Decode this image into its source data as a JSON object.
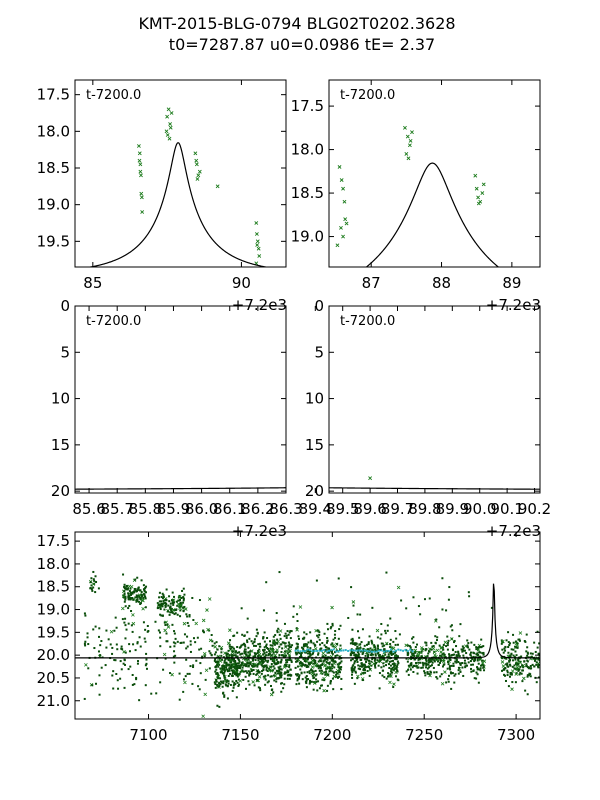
{
  "title": {
    "line1": "KMT-2015-BLG-0794 BLG02T0202.3628",
    "line2": "t0=7287.87 u0=0.0986 tE=   2.37"
  },
  "colors": {
    "model": "#000000",
    "points": "#1a7a1a",
    "points_dark": "#0a4d0a",
    "cyan": "#2ab0c8"
  },
  "chart_data": [
    {
      "id": "panel-top-left",
      "type": "line",
      "annotation": "t-7200.0",
      "offset_label": "+7.2e3",
      "xlim": [
        84.4,
        91.5
      ],
      "ylim": [
        19.85,
        17.3
      ],
      "xticks": [
        {
          "v": 85,
          "label": "85"
        },
        {
          "v": 90,
          "label": "90"
        }
      ],
      "yticks": [
        {
          "v": 17.5,
          "label": "17.5"
        },
        {
          "v": 18.0,
          "label": "18.0"
        },
        {
          "v": 18.5,
          "label": "18.5"
        },
        {
          "v": 19.0,
          "label": "19.0"
        },
        {
          "v": 19.5,
          "label": "19.5"
        }
      ],
      "model": {
        "t0": 87.87,
        "u0": 0.0986,
        "tE": 2.37,
        "base": 19.95,
        "fs": 0.46
      },
      "points": [
        [
          86.55,
          18.2
        ],
        [
          86.58,
          18.3
        ],
        [
          86.6,
          18.45
        ],
        [
          86.62,
          18.6
        ],
        [
          86.63,
          18.85
        ],
        [
          86.65,
          18.9
        ],
        [
          86.66,
          19.1
        ],
        [
          86.6,
          18.55
        ],
        [
          86.57,
          18.4
        ],
        [
          87.5,
          17.8
        ],
        [
          87.55,
          17.7
        ],
        [
          87.6,
          17.9
        ],
        [
          87.52,
          18.05
        ],
        [
          87.58,
          18.1
        ],
        [
          87.62,
          17.95
        ],
        [
          87.65,
          17.75
        ],
        [
          87.48,
          18.0
        ],
        [
          88.45,
          18.3
        ],
        [
          88.5,
          18.45
        ],
        [
          88.55,
          18.6
        ],
        [
          88.6,
          18.55
        ],
        [
          88.48,
          18.4
        ],
        [
          88.52,
          18.65
        ],
        [
          89.2,
          18.75
        ],
        [
          90.5,
          19.25
        ],
        [
          90.52,
          19.4
        ],
        [
          90.55,
          19.5
        ],
        [
          90.58,
          19.6
        ],
        [
          90.6,
          19.7
        ],
        [
          90.5,
          19.8
        ],
        [
          90.53,
          19.55
        ]
      ]
    },
    {
      "id": "panel-top-right",
      "type": "line",
      "annotation": "t-7200.0",
      "offset_label": "+7.2e3",
      "xlim": [
        86.4,
        89.4
      ],
      "ylim": [
        19.35,
        17.2
      ],
      "xticks": [
        {
          "v": 87,
          "label": "87"
        },
        {
          "v": 88,
          "label": "88"
        },
        {
          "v": 89,
          "label": "89"
        }
      ],
      "yticks": [
        {
          "v": 17.5,
          "label": "17.5"
        },
        {
          "v": 18.0,
          "label": "18.0"
        },
        {
          "v": 18.5,
          "label": "18.5"
        },
        {
          "v": 19.0,
          "label": "19.0"
        }
      ],
      "model": {
        "t0": 87.87,
        "u0": 0.0986,
        "tE": 2.37,
        "base": 19.95,
        "fs": 0.46
      },
      "points": [
        [
          86.55,
          18.2
        ],
        [
          86.58,
          18.35
        ],
        [
          86.6,
          18.45
        ],
        [
          86.62,
          18.6
        ],
        [
          86.63,
          18.8
        ],
        [
          86.65,
          18.85
        ],
        [
          86.6,
          19.0
        ],
        [
          86.57,
          18.9
        ],
        [
          86.52,
          19.1
        ],
        [
          87.48,
          17.75
        ],
        [
          87.52,
          17.85
        ],
        [
          87.55,
          17.95
        ],
        [
          87.5,
          18.05
        ],
        [
          87.53,
          18.1
        ],
        [
          87.56,
          17.9
        ],
        [
          87.58,
          17.8
        ],
        [
          88.48,
          18.3
        ],
        [
          88.5,
          18.45
        ],
        [
          88.52,
          18.55
        ],
        [
          88.55,
          18.6
        ],
        [
          88.58,
          18.5
        ],
        [
          88.6,
          18.4
        ],
        [
          88.53,
          18.62
        ]
      ]
    },
    {
      "id": "panel-mid-left",
      "type": "line",
      "annotation": "t-7200.0",
      "offset_label": "+7.2e3",
      "xlim": [
        85.55,
        86.3
      ],
      "ylim": [
        20.2,
        0
      ],
      "xticks": [
        {
          "v": 85.6,
          "label": "85.6"
        },
        {
          "v": 85.7,
          "label": "85.7"
        },
        {
          "v": 85.8,
          "label": "85.8"
        },
        {
          "v": 85.9,
          "label": "85.9"
        },
        {
          "v": 86.0,
          "label": "86.0"
        },
        {
          "v": 86.1,
          "label": "86.1"
        },
        {
          "v": 86.2,
          "label": "86.2"
        },
        {
          "v": 86.3,
          "label": "86.3"
        }
      ],
      "yticks": [
        {
          "v": 0,
          "label": "0"
        },
        {
          "v": 5,
          "label": "5"
        },
        {
          "v": 10,
          "label": "10"
        },
        {
          "v": 15,
          "label": "15"
        },
        {
          "v": 20,
          "label": "20"
        }
      ],
      "model": {
        "t0": 87.87,
        "u0": 0.0986,
        "tE": 2.37,
        "base": 19.95,
        "fs": 0.46
      },
      "points": []
    },
    {
      "id": "panel-mid-right",
      "type": "line",
      "annotation": "t-7200.0",
      "offset_label": "+7.2e3",
      "xlim": [
        89.45,
        90.22
      ],
      "ylim": [
        20.2,
        0
      ],
      "xticks": [
        {
          "v": 89.4,
          "label": "89.4"
        },
        {
          "v": 89.5,
          "label": "89.5"
        },
        {
          "v": 89.6,
          "label": "89.6"
        },
        {
          "v": 89.7,
          "label": "89.7"
        },
        {
          "v": 89.8,
          "label": "89.8"
        },
        {
          "v": 89.9,
          "label": "89.9"
        },
        {
          "v": 90.0,
          "label": "90.0"
        },
        {
          "v": 90.1,
          "label": "90.1"
        },
        {
          "v": 90.2,
          "label": "90.2"
        }
      ],
      "yticks": [
        {
          "v": 0,
          "label": "0"
        },
        {
          "v": 5,
          "label": "5"
        },
        {
          "v": 10,
          "label": "10"
        },
        {
          "v": 15,
          "label": "15"
        },
        {
          "v": 20,
          "label": "20"
        }
      ],
      "model": {
        "t0": 87.87,
        "u0": 0.0986,
        "tE": 2.37,
        "base": 19.95,
        "fs": 0.46
      },
      "points": [
        [
          89.6,
          18.6
        ]
      ]
    },
    {
      "id": "panel-bottom",
      "type": "scatter",
      "annotation": "",
      "xlim": [
        7060,
        7313
      ],
      "ylim": [
        21.4,
        17.3
      ],
      "xticks": [
        {
          "v": 7100,
          "label": "7100"
        },
        {
          "v": 7150,
          "label": "7150"
        },
        {
          "v": 7200,
          "label": "7200"
        },
        {
          "v": 7250,
          "label": "7250"
        },
        {
          "v": 7300,
          "label": "7300"
        }
      ],
      "yticks": [
        {
          "v": 17.5,
          "label": "17.5"
        },
        {
          "v": 18.0,
          "label": "18.0"
        },
        {
          "v": 18.5,
          "label": "18.5"
        },
        {
          "v": 19.0,
          "label": "19.0"
        },
        {
          "v": 19.5,
          "label": "19.5"
        },
        {
          "v": 20.0,
          "label": "20.0"
        },
        {
          "v": 20.5,
          "label": "20.5"
        },
        {
          "v": 21.0,
          "label": "21.0"
        }
      ],
      "model": {
        "t0": 7287.87,
        "u0": 0.0986,
        "tE": 2.37,
        "base": 20.06,
        "fs": 0.48
      },
      "clusters": [
        {
          "t": [
            7065,
            7135
          ],
          "mean": 19.9,
          "sd": 0.5,
          "n": 220
        },
        {
          "t": [
            7086,
            7099
          ],
          "mean": 18.65,
          "sd": 0.12,
          "n": 110
        },
        {
          "t": [
            7105,
            7120
          ],
          "mean": 18.85,
          "sd": 0.12,
          "n": 110
        },
        {
          "t": [
            7068,
            7073
          ],
          "mean": 18.45,
          "sd": 0.15,
          "n": 18
        },
        {
          "t": [
            7136,
            7150
          ],
          "mean": 20.25,
          "sd": 0.28,
          "n": 260
        },
        {
          "t": [
            7150,
            7178
          ],
          "mean": 20.1,
          "sd": 0.3,
          "n": 420
        },
        {
          "t": [
            7180,
            7205
          ],
          "mean": 20.1,
          "sd": 0.3,
          "n": 360
        },
        {
          "t": [
            7210,
            7236
          ],
          "mean": 20.05,
          "sd": 0.25,
          "n": 320
        },
        {
          "t": [
            7240,
            7283
          ],
          "mean": 20.05,
          "sd": 0.22,
          "n": 380
        },
        {
          "t": [
            7292,
            7313
          ],
          "mean": 20.15,
          "sd": 0.25,
          "n": 200
        },
        {
          "t": [
            7150,
            7290
          ],
          "mean": 19.3,
          "sd": 0.6,
          "n": 70
        }
      ],
      "cyan_segment": {
        "t": [
          7180,
          7245
        ],
        "mag": 19.9
      }
    }
  ]
}
